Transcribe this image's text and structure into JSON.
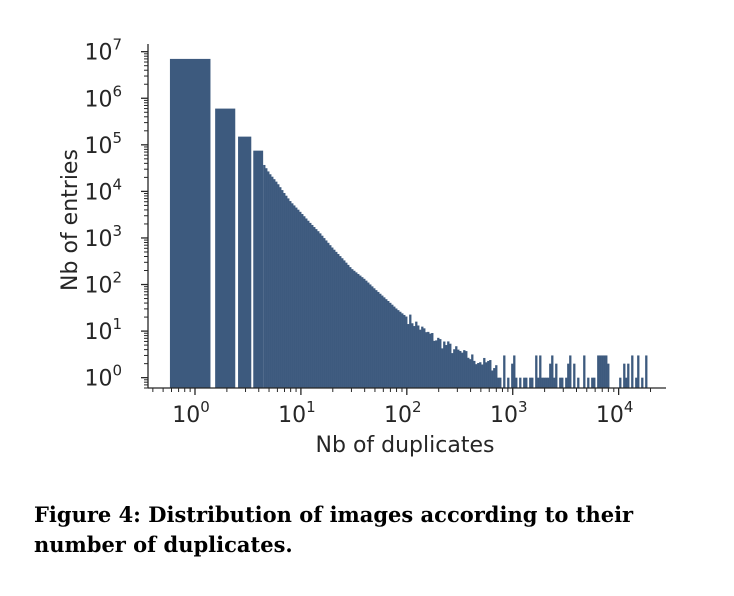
{
  "caption": "Figure 4: Distribution of images according to their number of duplicates.",
  "colors": {
    "bar": "#3d5a7e",
    "axis": "#262626"
  },
  "chart_data": {
    "type": "bar",
    "title": "",
    "xlabel": "Nb of duplicates",
    "ylabel": "Nb of entries",
    "xscale": "log",
    "yscale": "log",
    "xlim": [
      0.36,
      28000
    ],
    "ylim": [
      0.6,
      12000000
    ],
    "grid": false,
    "x_ticks": [
      {
        "value": 1,
        "base": "10",
        "exp": "0"
      },
      {
        "value": 10,
        "base": "10",
        "exp": "1"
      },
      {
        "value": 100,
        "base": "10",
        "exp": "2"
      },
      {
        "value": 1000,
        "base": "10",
        "exp": "3"
      },
      {
        "value": 10000,
        "base": "10",
        "exp": "4"
      }
    ],
    "y_ticks": [
      {
        "value": 1,
        "base": "10",
        "exp": "0"
      },
      {
        "value": 10,
        "base": "10",
        "exp": "1"
      },
      {
        "value": 100,
        "base": "10",
        "exp": "2"
      },
      {
        "value": 1000,
        "base": "10",
        "exp": "3"
      },
      {
        "value": 10000,
        "base": "10",
        "exp": "4"
      },
      {
        "value": 100000,
        "base": "10",
        "exp": "5"
      },
      {
        "value": 1000000,
        "base": "10",
        "exp": "6"
      },
      {
        "value": 10000000,
        "base": "10",
        "exp": "7"
      }
    ],
    "bars": [
      {
        "x0": 0.58,
        "x1": 1.4,
        "value": 7000000
      },
      {
        "x0": 1.55,
        "x1": 2.4,
        "value": 600000
      },
      {
        "x0": 2.55,
        "x1": 3.4,
        "value": 150000
      },
      {
        "x0": 3.55,
        "x1": 4.4,
        "value": 75000
      }
    ],
    "series": {
      "name": "",
      "x_range": [
        4.4,
        18000
      ],
      "x": [
        4.4,
        5,
        6,
        7,
        8,
        10,
        12,
        15,
        20,
        25,
        30,
        40,
        50,
        60,
        70,
        80,
        100,
        120,
        150,
        200,
        250,
        300,
        400,
        500,
        600,
        700,
        800,
        1000,
        1200,
        1500,
        2000,
        3000,
        5000,
        8000,
        12000,
        18000
      ],
      "y": [
        40000,
        25000,
        15000,
        9000,
        6000,
        3500,
        2200,
        1300,
        600,
        350,
        220,
        130,
        80,
        55,
        40,
        30,
        20,
        14,
        9,
        6,
        4.5,
        3.5,
        2.6,
        2.1,
        1.9,
        1.7,
        1.6,
        1.5,
        1.4,
        1.3,
        1.2,
        1.1,
        1.05,
        1.02,
        1.0,
        1.0
      ]
    }
  }
}
